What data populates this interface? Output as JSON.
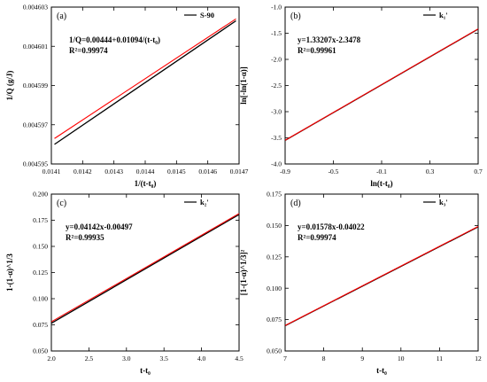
{
  "chart_data": [
    {
      "type": "line",
      "panel_label": "(a)",
      "xlabel": "1/(t-t₀)",
      "ylabel": "1/Q (g/J)",
      "xlim": [
        0.0141,
        0.0147
      ],
      "ylim": [
        0.004595,
        0.004603
      ],
      "xticks": [
        "0.0141",
        "0.0142",
        "0.0143",
        "0.0144",
        "0.0145",
        "0.0146",
        "0.0147"
      ],
      "yticks": [
        "0.004595",
        "0.004597",
        "0.004599",
        "0.004601",
        "0.004603"
      ],
      "equation": "1/Q=0.00444+0.01094/(t-t₀)",
      "r2": "R²=0.99974",
      "legend": "S-90",
      "legend_position": "top-right",
      "series": [
        {
          "name": "S-90",
          "color": "#000000",
          "x": [
            0.01411,
            0.01469
          ],
          "y": [
            0.004596,
            0.0046023
          ]
        },
        {
          "name": "fit",
          "color": "#ff0000",
          "x": [
            0.01411,
            0.01469
          ],
          "y": [
            0.0045963,
            0.0046024
          ]
        }
      ]
    },
    {
      "type": "line",
      "panel_label": "(b)",
      "xlabel": "ln(t-t₀)",
      "ylabel": "ln[-ln(1-α)]",
      "xlim": [
        -0.9,
        0.7
      ],
      "ylim": [
        -4.0,
        -1.0
      ],
      "xticks": [
        "-0.9",
        "-0.5",
        "-0.1",
        "0.3",
        "0.7"
      ],
      "yticks": [
        "-4.0",
        "-3.5",
        "-3.0",
        "-2.5",
        "-2.0",
        "-1.5",
        "-1.0"
      ],
      "equation": "y=1.33207x-2.3478",
      "r2": "R²=0.99961",
      "legend": "k₁'",
      "legend_position": "top-right",
      "series": [
        {
          "name": "k₁'",
          "color": "#000000",
          "x": [
            -0.9,
            0.7
          ],
          "y": [
            -3.55,
            -1.42
          ]
        },
        {
          "name": "fit",
          "color": "#ff0000",
          "x": [
            -0.9,
            0.7
          ],
          "y": [
            -3.547,
            -1.416
          ]
        }
      ]
    },
    {
      "type": "line",
      "panel_label": "(c)",
      "xlabel": "t-t₀",
      "ylabel": "1-(1-α)^1/3",
      "xlim": [
        2.0,
        4.5
      ],
      "ylim": [
        0.05,
        0.2
      ],
      "xticks": [
        "2.0",
        "2.5",
        "3.0",
        "3.5",
        "4.0",
        "4.5"
      ],
      "yticks": [
        "0.050",
        "0.075",
        "0.100",
        "0.125",
        "0.150",
        "0.175",
        "0.200"
      ],
      "equation": "y=0.04142x-0.00497",
      "r2": "R²=0.99935",
      "legend": "k₂'",
      "legend_position": "top-right",
      "series": [
        {
          "name": "k₂'",
          "color": "#000000",
          "x": [
            2.0,
            4.5
          ],
          "y": [
            0.0765,
            0.1805
          ]
        },
        {
          "name": "fit",
          "color": "#ff0000",
          "x": [
            2.0,
            4.5
          ],
          "y": [
            0.0779,
            0.1814
          ]
        }
      ]
    },
    {
      "type": "line",
      "panel_label": "(d)",
      "xlabel": "t-t₀",
      "ylabel": "[1-(1-α)^1/3]²",
      "xlim": [
        7,
        12
      ],
      "ylim": [
        0.05,
        0.175
      ],
      "xticks": [
        "7",
        "8",
        "9",
        "10",
        "11",
        "12"
      ],
      "yticks": [
        "0.050",
        "0.075",
        "0.100",
        "0.125",
        "0.150",
        "0.175"
      ],
      "equation": "y=0.01578x-0.04022",
      "r2": "R²=0.99974",
      "legend": "k₃'",
      "legend_position": "top-right",
      "series": [
        {
          "name": "k₃'",
          "color": "#000000",
          "x": [
            7,
            12
          ],
          "y": [
            0.0701,
            0.1489
          ]
        },
        {
          "name": "fit",
          "color": "#ff0000",
          "x": [
            7,
            12
          ],
          "y": [
            0.0703,
            0.1492
          ]
        }
      ]
    }
  ]
}
